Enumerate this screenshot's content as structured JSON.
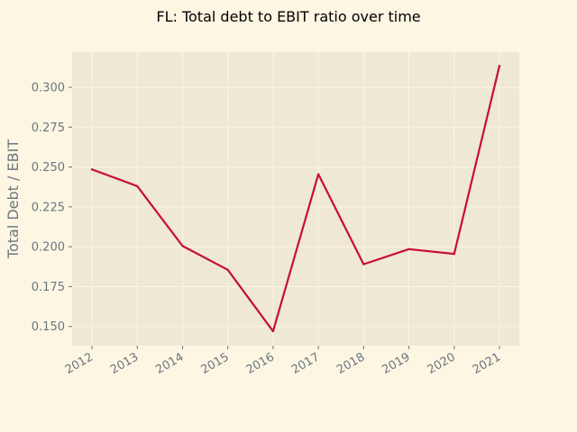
{
  "chart_data": {
    "type": "line",
    "title": "FL: Total debt to EBIT ratio over time",
    "xlabel": "",
    "ylabel": "Total Debt / EBIT",
    "x": [
      "2012",
      "2013",
      "2014",
      "2015",
      "2016",
      "2017",
      "2018",
      "2019",
      "2020",
      "2021"
    ],
    "series": [
      {
        "values": [
          0.2485,
          0.238,
          0.2005,
          0.1855,
          0.147,
          0.2455,
          0.189,
          0.1985,
          0.1955,
          0.3135
        ]
      }
    ],
    "ylim": [
      0.138,
      0.322
    ],
    "yticks": [
      0.15,
      0.175,
      0.2,
      0.225,
      0.25,
      0.275,
      0.3
    ],
    "ytick_labels": [
      "0.150",
      "0.175",
      "0.200",
      "0.225",
      "0.250",
      "0.275",
      "0.300"
    ],
    "grid": true,
    "legend": "none",
    "colors": {
      "page_background": "#fdf6e3",
      "plot_background": "#eee8d5",
      "grid": "#fdf6e3",
      "line": "#c8102e",
      "tick_text": "#6b7680"
    }
  }
}
